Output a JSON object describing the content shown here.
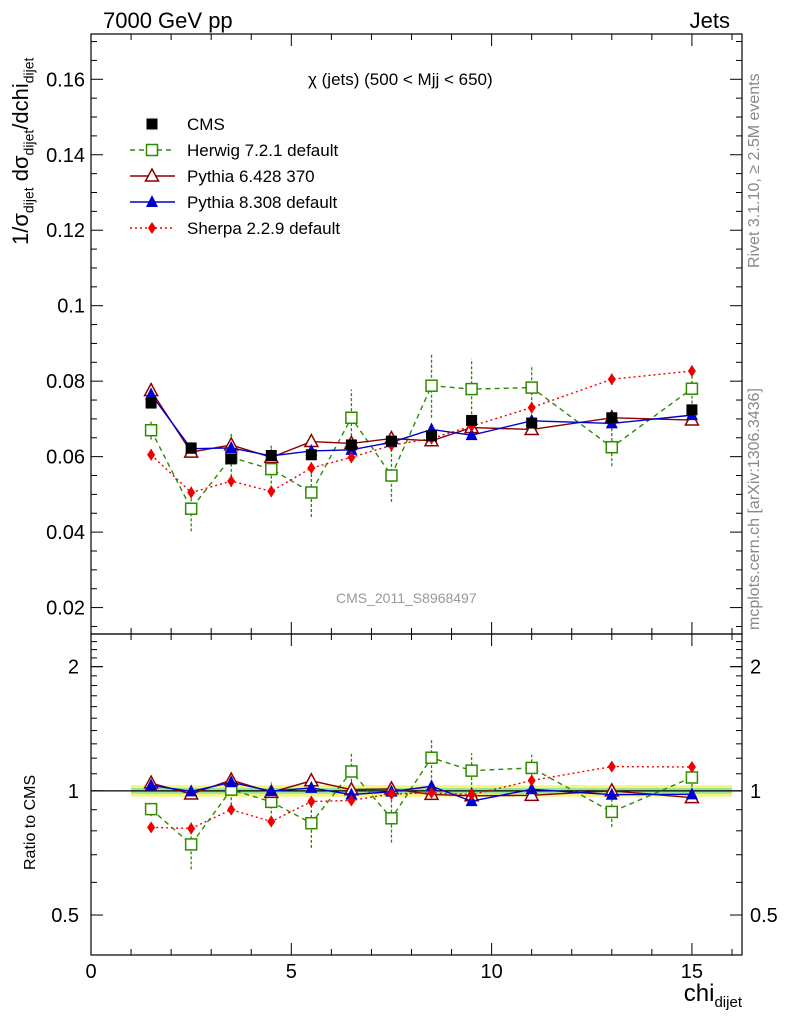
{
  "header": {
    "left_label": "7000 GeV pp",
    "right_label": "Jets"
  },
  "side_labels": {
    "rivet": "Rivet 3.1.10, ≥ 2.5M events",
    "mcplots": "mcplots.cern.ch [arXiv:1306.3436]"
  },
  "annotations": {
    "plot_title": "χ (jets) (500 < Mjj <  650)",
    "analysis_id": "CMS_2011_S8968497"
  },
  "axes": {
    "main_ylabel_prefix": "1/σ",
    "main_ylabel_sub1": "dijet",
    "main_ylabel_mid": " dσ",
    "main_ylabel_sub2": "dijet",
    "main_ylabel_mid2": "/dchi",
    "main_ylabel_sub3": "dijet",
    "xlabel": "chi",
    "xlabel_sub": "dijet",
    "ratio_ylabel": "Ratio to CMS"
  },
  "chart_data": {
    "type": "line",
    "x_ticks": [
      0,
      5,
      10,
      15
    ],
    "xlim": [
      0,
      16.25
    ],
    "main": {
      "ylim": [
        0.013,
        0.172
      ],
      "yticks": [
        0.02,
        0.04,
        0.06,
        0.08,
        0.1,
        0.12,
        0.14,
        0.16
      ],
      "ytick_labels": [
        "0.02",
        "0.04",
        "0.06",
        "0.08",
        "0.1",
        "0.12",
        "0.14",
        "0.16"
      ]
    },
    "ratio": {
      "ylim": [
        0.4,
        2.4
      ],
      "log_scale": true,
      "yticks": [
        0.5,
        1,
        2
      ],
      "ytick_labels": [
        "0.5",
        "1",
        "2"
      ]
    },
    "x": [
      1.5,
      2.5,
      3.5,
      4.5,
      5.5,
      6.5,
      7.5,
      8.5,
      9.5,
      11,
      13,
      15
    ],
    "x_bin_edges": [
      1,
      2,
      3,
      4,
      5,
      6,
      7,
      8,
      9,
      10,
      12,
      14,
      16
    ],
    "cms_band_rel_error": 0.02,
    "series": [
      {
        "name": "CMS",
        "color": "#000000",
        "marker": "square-filled",
        "values": [
          0.0742,
          0.0623,
          0.0594,
          0.0603,
          0.0605,
          0.0631,
          0.0641,
          0.0655,
          0.0696,
          0.0689,
          0.0703,
          0.0724
        ],
        "errors": [
          0.0012,
          0.001,
          0.001,
          0.001,
          0.001,
          0.001,
          0.001,
          0.0011,
          0.0012,
          0.0012,
          0.0012,
          0.0013
        ]
      },
      {
        "name": "Herwig 7.2.1 default",
        "color": "#2e8b00",
        "marker": "square-open",
        "dash": "5,4",
        "values": [
          0.067,
          0.0462,
          0.0598,
          0.0567,
          0.0505,
          0.0703,
          0.055,
          0.0788,
          0.0779,
          0.0783,
          0.0625,
          0.078
        ],
        "errors": [
          0.0025,
          0.006,
          0.0065,
          0.0065,
          0.0065,
          0.0075,
          0.007,
          0.0085,
          0.008,
          0.006,
          0.005,
          0.004
        ]
      },
      {
        "name": "Pythia 6.428 370",
        "color": "#8b0000",
        "marker": "triangle-open",
        "values": [
          0.0775,
          0.0612,
          0.0631,
          0.0598,
          0.064,
          0.0635,
          0.0648,
          0.0642,
          0.0677,
          0.0672,
          0.0703,
          0.0697
        ],
        "errors": [
          0.0012,
          0.001,
          0.001,
          0.001,
          0.001,
          0.001,
          0.001,
          0.001,
          0.001,
          0.001,
          0.001,
          0.001
        ]
      },
      {
        "name": "Pythia 8.308 default",
        "color": "#0000cc",
        "marker": "triangle-filled",
        "values": [
          0.0765,
          0.0621,
          0.0623,
          0.0602,
          0.0615,
          0.0618,
          0.0638,
          0.0672,
          0.0657,
          0.0695,
          0.0688,
          0.071
        ],
        "errors": [
          0.0012,
          0.001,
          0.001,
          0.001,
          0.001,
          0.001,
          0.001,
          0.001,
          0.001,
          0.001,
          0.001,
          0.001
        ]
      },
      {
        "name": "Sherpa 2.2.9 default",
        "color": "#ee0000",
        "marker": "diamond-filled",
        "dash": "2,3",
        "values": [
          0.0605,
          0.0505,
          0.0535,
          0.0508,
          0.057,
          0.0598,
          0.063,
          0.0648,
          0.0681,
          0.073,
          0.0805,
          0.0827
        ],
        "errors": [
          0.0015,
          0.0015,
          0.0015,
          0.0015,
          0.0015,
          0.0015,
          0.0015,
          0.0015,
          0.0015,
          0.0015,
          0.0015,
          0.0015
        ]
      }
    ]
  }
}
